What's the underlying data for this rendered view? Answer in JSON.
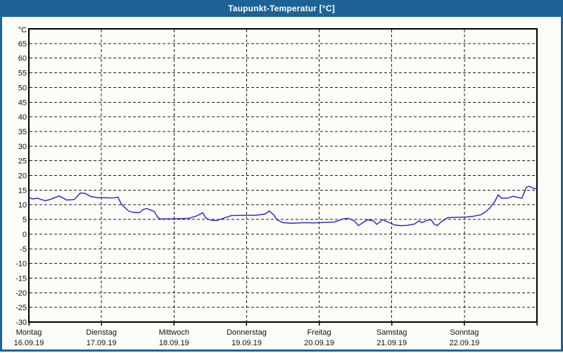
{
  "window": {
    "title": "Taupunkt-Temperatur [°C]",
    "accent_color": "#1E6499",
    "content_background": "#FCFDF8"
  },
  "chart_data": {
    "type": "line",
    "title": "Taupunkt-Temperatur [°C]",
    "ylabel": "",
    "xlabel": "",
    "y_unit_label": "°C",
    "ylim": [
      -30,
      70
    ],
    "y_tick_step": 5,
    "y_tick_labels": [
      65,
      60,
      55,
      50,
      45,
      40,
      35,
      30,
      25,
      20,
      15,
      10,
      5,
      0,
      -5,
      -10,
      -15,
      -20,
      -25,
      -30
    ],
    "xlim_hours": [
      0,
      168
    ],
    "x_day_ticks_hours": [
      0,
      24,
      48,
      72,
      96,
      120,
      144,
      168
    ],
    "x_days": [
      {
        "name": "Montag",
        "date": "16.09.19"
      },
      {
        "name": "Dienstag",
        "date": "17.09.19"
      },
      {
        "name": "Mittwoch",
        "date": "18.09.19"
      },
      {
        "name": "Donnerstag",
        "date": "19.09.19"
      },
      {
        "name": "Freitag",
        "date": "20.09.19"
      },
      {
        "name": "Samstag",
        "date": "21.09.19"
      },
      {
        "name": "Sonntag",
        "date": "22.09.19"
      }
    ],
    "grid": "dashed",
    "grid_color": "#1A1A1A",
    "axis_color": "#000000",
    "text_color": "#111111",
    "line_color": "#2222CC",
    "series": [
      {
        "name": "Taupunkt-Temperatur",
        "points": [
          [
            0,
            12.7
          ],
          [
            1,
            12.0
          ],
          [
            3,
            12.2
          ],
          [
            4,
            11.8
          ],
          [
            5.5,
            11.4
          ],
          [
            7,
            11.8
          ],
          [
            8.5,
            12.4
          ],
          [
            10,
            13.0
          ],
          [
            11.5,
            12.2
          ],
          [
            12.5,
            11.6
          ],
          [
            14,
            11.7
          ],
          [
            15,
            11.8
          ],
          [
            17,
            14.0
          ],
          [
            18.5,
            13.9
          ],
          [
            20.5,
            12.8
          ],
          [
            23,
            12.4
          ],
          [
            25,
            12.4
          ],
          [
            27.5,
            12.3
          ],
          [
            29.5,
            12.6
          ],
          [
            30.5,
            10.3
          ],
          [
            32,
            8.8
          ],
          [
            33,
            7.9
          ],
          [
            34.5,
            7.4
          ],
          [
            36.5,
            7.3
          ],
          [
            38,
            8.5
          ],
          [
            39,
            8.7
          ],
          [
            40.5,
            8.1
          ],
          [
            41.5,
            7.7
          ],
          [
            42.5,
            5.8
          ],
          [
            43.5,
            5.1
          ],
          [
            45,
            5.2
          ],
          [
            48,
            5.2
          ],
          [
            51,
            5.3
          ],
          [
            53,
            5.4
          ],
          [
            55.5,
            6.2
          ],
          [
            57.5,
            7.3
          ],
          [
            58.5,
            5.5
          ],
          [
            60,
            4.8
          ],
          [
            62,
            4.6
          ],
          [
            65,
            5.6
          ],
          [
            67,
            6.3
          ],
          [
            71,
            6.4
          ],
          [
            75,
            6.4
          ],
          [
            78,
            6.8
          ],
          [
            79.5,
            7.9
          ],
          [
            81,
            6.5
          ],
          [
            82,
            4.9
          ],
          [
            84,
            3.9
          ],
          [
            87,
            3.7
          ],
          [
            89,
            3.8
          ],
          [
            92,
            3.9
          ],
          [
            94,
            3.8
          ],
          [
            96,
            3.9
          ],
          [
            99,
            4.0
          ],
          [
            101,
            4.1
          ],
          [
            104,
            5.2
          ],
          [
            105.5,
            5.4
          ],
          [
            107.5,
            4.6
          ],
          [
            109,
            2.9
          ],
          [
            111,
            4.3
          ],
          [
            112,
            4.9
          ],
          [
            114,
            4.5
          ],
          [
            115,
            3.3
          ],
          [
            117,
            4.9
          ],
          [
            118.5,
            4.2
          ],
          [
            121,
            3.1
          ],
          [
            123,
            2.9
          ],
          [
            125,
            3.0
          ],
          [
            127.5,
            3.4
          ],
          [
            129,
            4.5
          ],
          [
            130,
            3.9
          ],
          [
            132,
            4.8
          ],
          [
            133,
            4.9
          ],
          [
            134,
            3.4
          ],
          [
            135,
            2.9
          ],
          [
            136.5,
            4.3
          ],
          [
            138.5,
            5.6
          ],
          [
            141.5,
            5.7
          ],
          [
            144.5,
            5.8
          ],
          [
            147,
            6.1
          ],
          [
            149.5,
            6.6
          ],
          [
            151,
            7.6
          ],
          [
            152.5,
            9.0
          ],
          [
            154,
            11.0
          ],
          [
            155.2,
            13.4
          ],
          [
            156.3,
            12.2
          ],
          [
            158.5,
            12.3
          ],
          [
            160,
            12.9
          ],
          [
            161,
            12.7
          ],
          [
            163,
            12.2
          ],
          [
            163.8,
            14.2
          ],
          [
            164.5,
            16.0
          ],
          [
            165.4,
            16.3
          ],
          [
            166.6,
            15.7
          ],
          [
            167.8,
            15.4
          ]
        ]
      }
    ]
  }
}
